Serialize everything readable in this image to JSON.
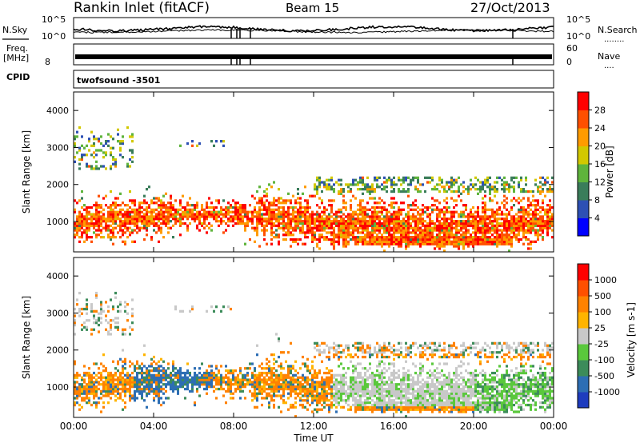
{
  "header": {
    "station": "Rankin Inlet (fitACF)",
    "beam": "Beam 15",
    "date": "27/Oct/2013"
  },
  "noise_panel": {
    "left_label": "N.Sky",
    "right_label": "N.Search",
    "right_legend": "........",
    "ticks_left": [
      "10^5",
      "10^0"
    ],
    "ticks_right": [
      "10^5",
      "10^0"
    ]
  },
  "freq_panel": {
    "left_label": "Freq.",
    "left_unit": "[MHz]",
    "right_label": "Nave",
    "right_legend": "....",
    "ticks_left": [
      "8"
    ],
    "ticks_right": [
      "60",
      "0"
    ]
  },
  "cpid_panel": {
    "label": "CPID",
    "value": "twofsound -3501"
  },
  "chart_data": [
    {
      "type": "heatmap",
      "name": "power",
      "xlabel": "",
      "ylabel": "Slant Range [km]",
      "x_ticks": [
        "00:00",
        "04:00",
        "08:00",
        "12:00",
        "16:00",
        "20:00",
        "00:00"
      ],
      "xlim_hours": [
        0,
        24
      ],
      "y_ticks": [
        1000,
        2000,
        3000,
        4000
      ],
      "ylim": [
        180,
        4500
      ],
      "colorbar": {
        "label": "Power [dB]",
        "ticks": [
          "4",
          "8",
          "12",
          "16",
          "20",
          "24",
          "28"
        ],
        "colors": [
          "#0000ff",
          "#2d50b4",
          "#3a7d5a",
          "#5fb43c",
          "#d2c800",
          "#ff9b00",
          "#ff5000",
          "#ff0000"
        ]
      }
    },
    {
      "type": "heatmap",
      "name": "velocity",
      "xlabel": "Time UT",
      "ylabel": "Slant Range [km]",
      "x_ticks": [
        "00:00",
        "04:00",
        "08:00",
        "12:00",
        "16:00",
        "20:00",
        "00:00"
      ],
      "xlim_hours": [
        0,
        24
      ],
      "y_ticks": [
        1000,
        2000,
        3000,
        4000
      ],
      "ylim": [
        180,
        4500
      ],
      "colorbar": {
        "label": "Velocity [m s-1]",
        "ticks": [
          "1000",
          "500",
          "100",
          "25",
          "-25",
          "-100",
          "-500",
          "-1000"
        ],
        "colors": [
          "#1e3cbe",
          "#2d6eb4",
          "#3c8c5a",
          "#5ac83c",
          "#c8c8c8",
          "#ffb400",
          "#ff8200",
          "#ff5000",
          "#ff0000"
        ]
      }
    }
  ]
}
